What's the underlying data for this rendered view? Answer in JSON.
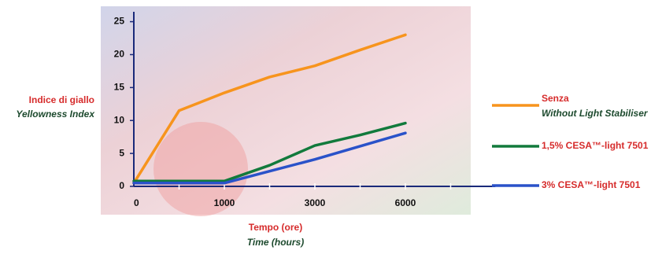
{
  "chart_data": {
    "type": "line",
    "y_label": "Indice di giallo",
    "y_label_en": "Yellowness Index",
    "x_label": "Tempo (ore)",
    "x_label_en": "Time (hours)",
    "categories": [
      "0",
      null,
      "1000",
      null,
      "3000",
      null,
      "6000",
      null
    ],
    "series": [
      {
        "name": "Senza",
        "subtitle": "Without Light Stabiliser",
        "color": "#f7941d",
        "values": [
          0.5,
          11.5,
          14.2,
          16.6,
          18.3,
          20.7,
          23,
          null
        ]
      },
      {
        "name": "1,5% CESA™-light 7501",
        "color": "#127a3c",
        "values": [
          0.8,
          0.8,
          0.8,
          3.2,
          6.2,
          7.8,
          9.6,
          null
        ]
      },
      {
        "name": "3% CESA™-light 7501",
        "color": "#2a52c9",
        "values": [
          0.5,
          0.5,
          0.5,
          2.3,
          4.1,
          6.1,
          8.1,
          null
        ]
      }
    ],
    "ylim": [
      0,
      26.5
    ],
    "yticks": [
      0,
      5,
      10,
      15,
      20,
      25
    ]
  }
}
